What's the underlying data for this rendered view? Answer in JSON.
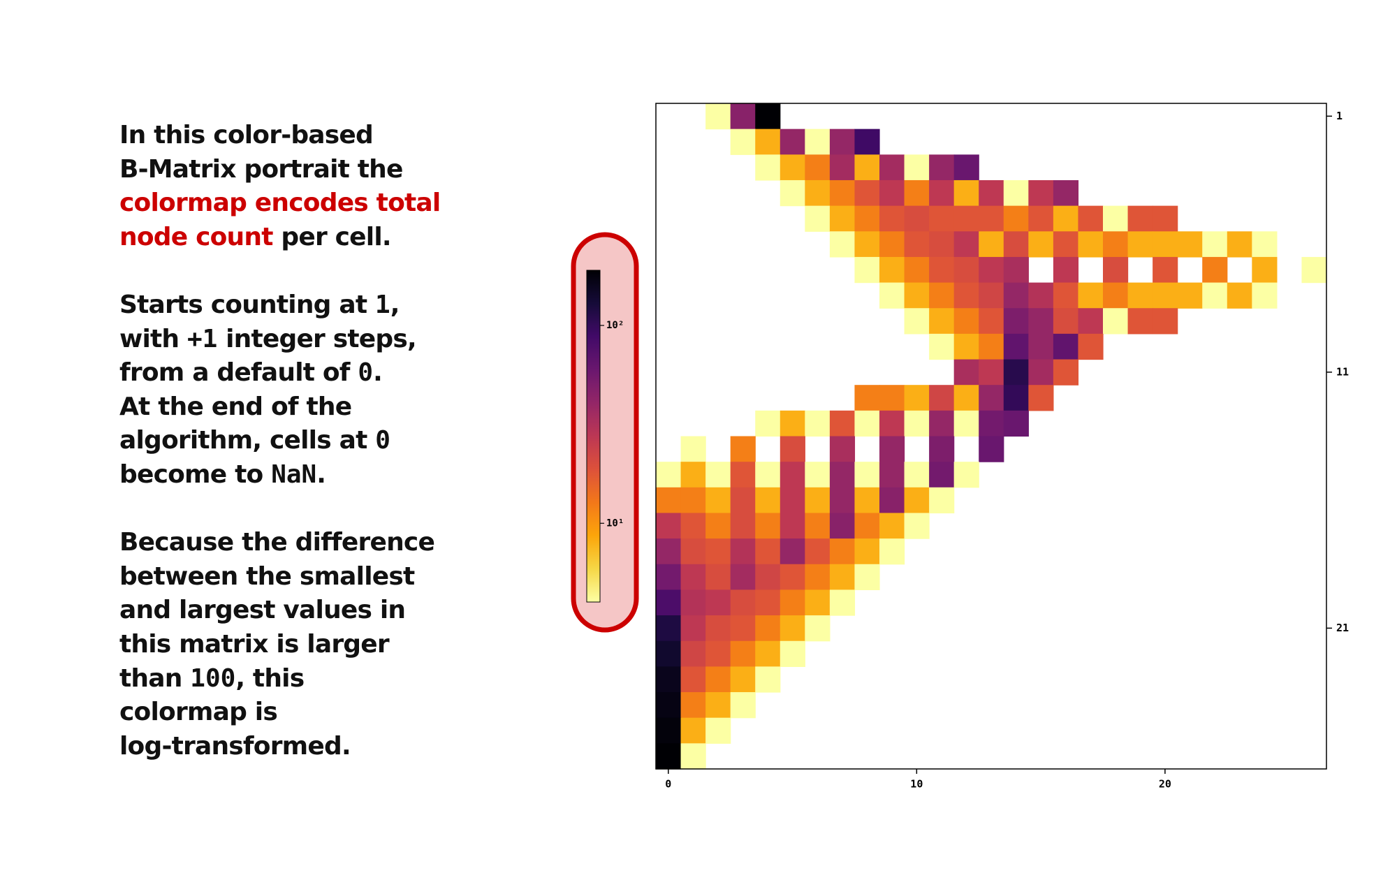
{
  "text": {
    "highlight_color": "#cc0000",
    "paragraphs": [
      [
        [
          "In this color-based"
        ],
        [
          "B-Matrix portrait the"
        ],
        [
          {
            "text": "colormap encodes total",
            "style": "highlight"
          }
        ],
        [
          {
            "text": "node count",
            "style": "highlight"
          },
          " per cell."
        ]
      ],
      [
        [
          "Starts counting at ",
          {
            "text": "1",
            "style": "mono"
          },
          ","
        ],
        [
          "with ",
          {
            "text": "+1",
            "style": "mono"
          },
          " integer steps,"
        ],
        [
          "from a default of ",
          {
            "text": "0",
            "style": "mono"
          },
          "."
        ],
        [
          "At the end of the"
        ],
        [
          "algorithm, cells at ",
          {
            "text": "0",
            "style": "mono"
          }
        ],
        [
          "become to ",
          {
            "text": "NaN",
            "style": "mono"
          },
          "."
        ]
      ],
      [
        [
          "Because the difference"
        ],
        [
          "between the smallest"
        ],
        [
          "and largest values in"
        ],
        [
          "this matrix is larger"
        ],
        [
          "than ",
          {
            "text": "100",
            "style": "mono"
          },
          ", this"
        ],
        [
          "colormap is"
        ],
        [
          "log-transformed."
        ]
      ]
    ]
  },
  "chart_data": {
    "type": "heatmap",
    "colormap": "inferno_r",
    "log_scale": true,
    "clim": [
      4,
      190
    ],
    "colorbar": {
      "ticks": [
        {
          "value": 100,
          "label": "10²"
        },
        {
          "value": 10,
          "label": "10¹"
        }
      ]
    },
    "xlim": [
      -0.5,
      26.5
    ],
    "ylim": [
      26.5,
      0.5
    ],
    "xticks": [
      0,
      10,
      20
    ],
    "yticks": [
      1,
      11,
      21
    ],
    "x": [
      0,
      1,
      2,
      3,
      4,
      5,
      6,
      7,
      8,
      9,
      10,
      11,
      12,
      13,
      14,
      15,
      16,
      17,
      18,
      19,
      20,
      21,
      22,
      23,
      24,
      25,
      26
    ],
    "y": [
      1,
      2,
      3,
      4,
      5,
      6,
      7,
      8,
      9,
      10,
      11,
      12,
      13,
      14,
      15,
      16,
      17,
      18,
      19,
      20,
      21,
      22,
      23,
      24,
      25,
      26
    ],
    "z": [
      [
        null,
        null,
        4,
        45,
        190,
        null,
        null,
        null,
        null,
        null,
        null,
        null,
        null,
        null,
        null,
        null,
        null,
        null,
        null,
        null,
        null,
        null,
        null,
        null,
        null,
        null,
        null
      ],
      [
        null,
        null,
        null,
        4,
        8,
        40,
        4,
        40,
        90,
        null,
        null,
        null,
        null,
        null,
        null,
        null,
        null,
        null,
        null,
        null,
        null,
        null,
        null,
        null,
        null,
        null,
        null
      ],
      [
        null,
        null,
        null,
        null,
        4,
        8,
        12,
        35,
        8,
        35,
        4,
        40,
        60,
        null,
        null,
        null,
        null,
        null,
        null,
        null,
        null,
        null,
        null,
        null,
        null,
        null,
        null
      ],
      [
        null,
        null,
        null,
        null,
        null,
        4,
        8,
        12,
        18,
        27,
        12,
        27,
        8,
        27,
        4,
        27,
        40,
        null,
        null,
        null,
        null,
        null,
        null,
        null,
        null,
        null,
        null
      ],
      [
        null,
        null,
        null,
        null,
        null,
        null,
        4,
        8,
        12,
        18,
        20,
        18,
        18,
        18,
        12,
        18,
        8,
        18,
        4,
        18,
        18,
        null,
        null,
        null,
        null,
        null,
        null
      ],
      [
        null,
        null,
        null,
        null,
        null,
        null,
        null,
        4,
        8,
        12,
        18,
        20,
        27,
        8,
        20,
        8,
        18,
        8,
        12,
        8,
        8,
        8,
        4,
        8,
        4,
        null,
        null
      ],
      [
        null,
        null,
        null,
        null,
        null,
        null,
        null,
        null,
        4,
        8,
        12,
        18,
        20,
        27,
        33,
        null,
        27,
        null,
        20,
        null,
        18,
        null,
        12,
        null,
        8,
        null,
        4
      ],
      [
        null,
        null,
        null,
        null,
        null,
        null,
        null,
        null,
        null,
        4,
        8,
        12,
        18,
        22,
        40,
        30,
        18,
        8,
        12,
        8,
        8,
        8,
        4,
        8,
        4,
        null,
        null
      ],
      [
        null,
        null,
        null,
        null,
        null,
        null,
        null,
        null,
        null,
        null,
        4,
        8,
        12,
        18,
        50,
        40,
        20,
        27,
        4,
        18,
        18,
        null,
        null,
        null,
        null,
        null,
        null
      ],
      [
        null,
        null,
        null,
        null,
        null,
        null,
        null,
        null,
        null,
        null,
        null,
        4,
        8,
        12,
        65,
        40,
        65,
        18,
        null,
        null,
        null,
        null,
        null,
        null,
        null,
        null,
        null
      ],
      [
        null,
        null,
        null,
        null,
        null,
        null,
        null,
        null,
        null,
        null,
        null,
        null,
        33,
        27,
        110,
        35,
        18,
        null,
        null,
        null,
        null,
        null,
        null,
        null,
        null,
        null,
        null
      ],
      [
        null,
        null,
        null,
        null,
        null,
        null,
        null,
        null,
        12,
        12,
        8,
        22,
        8,
        40,
        100,
        18,
        null,
        null,
        null,
        null,
        null,
        null,
        null,
        null,
        null,
        null,
        null
      ],
      [
        null,
        null,
        null,
        null,
        4,
        8,
        4,
        18,
        4,
        27,
        4,
        40,
        4,
        55,
        60,
        null,
        null,
        null,
        null,
        null,
        null,
        null,
        null,
        null,
        null,
        null,
        null
      ],
      [
        null,
        4,
        null,
        12,
        null,
        20,
        null,
        33,
        null,
        40,
        null,
        50,
        null,
        60,
        null,
        null,
        null,
        null,
        null,
        null,
        null,
        null,
        null,
        null,
        null,
        null,
        null
      ],
      [
        4,
        8,
        4,
        18,
        4,
        27,
        4,
        40,
        4,
        40,
        4,
        55,
        4,
        null,
        null,
        null,
        null,
        null,
        null,
        null,
        null,
        null,
        null,
        null,
        null,
        null,
        null
      ],
      [
        12,
        12,
        8,
        20,
        8,
        27,
        8,
        40,
        8,
        45,
        8,
        4,
        null,
        null,
        null,
        null,
        null,
        null,
        null,
        null,
        null,
        null,
        null,
        null,
        null,
        null,
        null
      ],
      [
        27,
        18,
        12,
        20,
        12,
        27,
        12,
        45,
        12,
        8,
        4,
        null,
        null,
        null,
        null,
        null,
        null,
        null,
        null,
        null,
        null,
        null,
        null,
        null,
        null,
        null,
        null
      ],
      [
        40,
        20,
        18,
        30,
        18,
        40,
        18,
        12,
        8,
        4,
        null,
        null,
        null,
        null,
        null,
        null,
        null,
        null,
        null,
        null,
        null,
        null,
        null,
        null,
        null,
        null,
        null
      ],
      [
        55,
        27,
        20,
        35,
        22,
        18,
        12,
        8,
        4,
        null,
        null,
        null,
        null,
        null,
        null,
        null,
        null,
        null,
        null,
        null,
        null,
        null,
        null,
        null,
        null,
        null,
        null
      ],
      [
        80,
        30,
        27,
        20,
        18,
        12,
        8,
        4,
        null,
        null,
        null,
        null,
        null,
        null,
        null,
        null,
        null,
        null,
        null,
        null,
        null,
        null,
        null,
        null,
        null,
        null,
        null
      ],
      [
        120,
        27,
        20,
        18,
        12,
        8,
        4,
        null,
        null,
        null,
        null,
        null,
        null,
        null,
        null,
        null,
        null,
        null,
        null,
        null,
        null,
        null,
        null,
        null,
        null,
        null,
        null
      ],
      [
        140,
        22,
        18,
        12,
        8,
        4,
        null,
        null,
        null,
        null,
        null,
        null,
        null,
        null,
        null,
        null,
        null,
        null,
        null,
        null,
        null,
        null,
        null,
        null,
        null,
        null,
        null
      ],
      [
        160,
        18,
        12,
        8,
        4,
        null,
        null,
        null,
        null,
        null,
        null,
        null,
        null,
        null,
        null,
        null,
        null,
        null,
        null,
        null,
        null,
        null,
        null,
        null,
        null,
        null,
        null
      ],
      [
        170,
        12,
        8,
        4,
        null,
        null,
        null,
        null,
        null,
        null,
        null,
        null,
        null,
        null,
        null,
        null,
        null,
        null,
        null,
        null,
        null,
        null,
        null,
        null,
        null,
        null,
        null
      ],
      [
        180,
        8,
        4,
        null,
        null,
        null,
        null,
        null,
        null,
        null,
        null,
        null,
        null,
        null,
        null,
        null,
        null,
        null,
        null,
        null,
        null,
        null,
        null,
        null,
        null,
        null,
        null
      ],
      [
        190,
        4,
        null,
        null,
        null,
        null,
        null,
        null,
        null,
        null,
        null,
        null,
        null,
        null,
        null,
        null,
        null,
        null,
        null,
        null,
        null,
        null,
        null,
        null,
        null,
        null,
        null
      ]
    ]
  }
}
